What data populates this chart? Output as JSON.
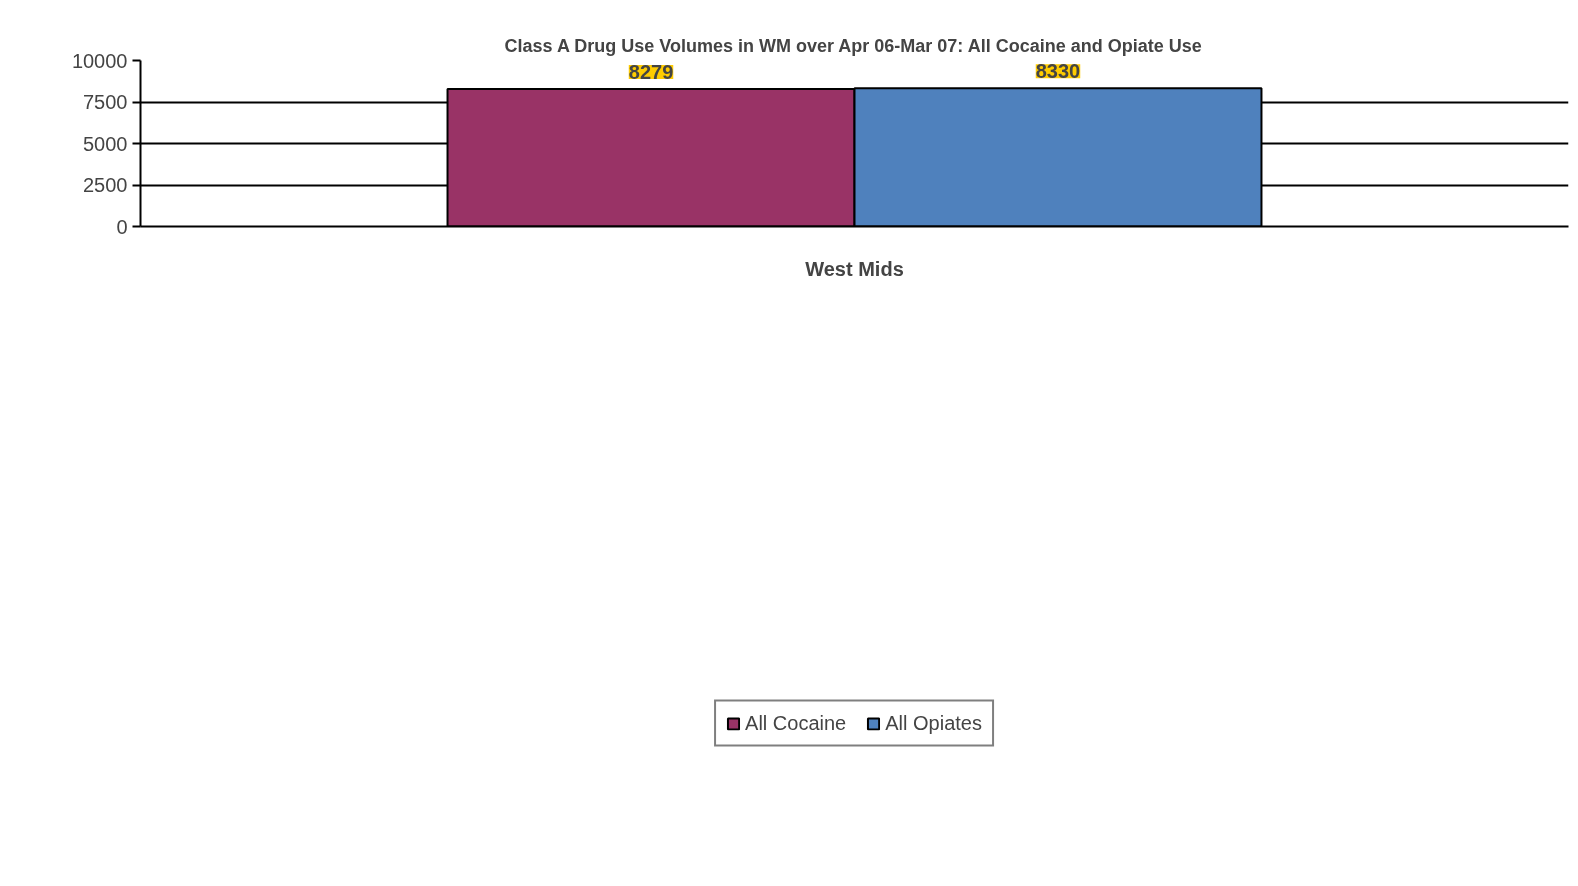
{
  "chart_data": {
    "type": "bar",
    "title": "Class A Drug Use Volumes in WM over Apr 06-Mar 07: All Cocaine and Opiate Use",
    "categories": [
      "West Mids"
    ],
    "series": [
      {
        "name": "All Cocaine",
        "color": "#993366",
        "values": [
          8279
        ]
      },
      {
        "name": "All Opiates",
        "color": "#4f81bd",
        "values": [
          8330
        ]
      }
    ],
    "ylim": [
      0,
      10000
    ],
    "yticks": [
      0,
      2500,
      5000,
      7500,
      10000
    ],
    "grid": "y",
    "legend": "bottom",
    "data_labels": true
  }
}
